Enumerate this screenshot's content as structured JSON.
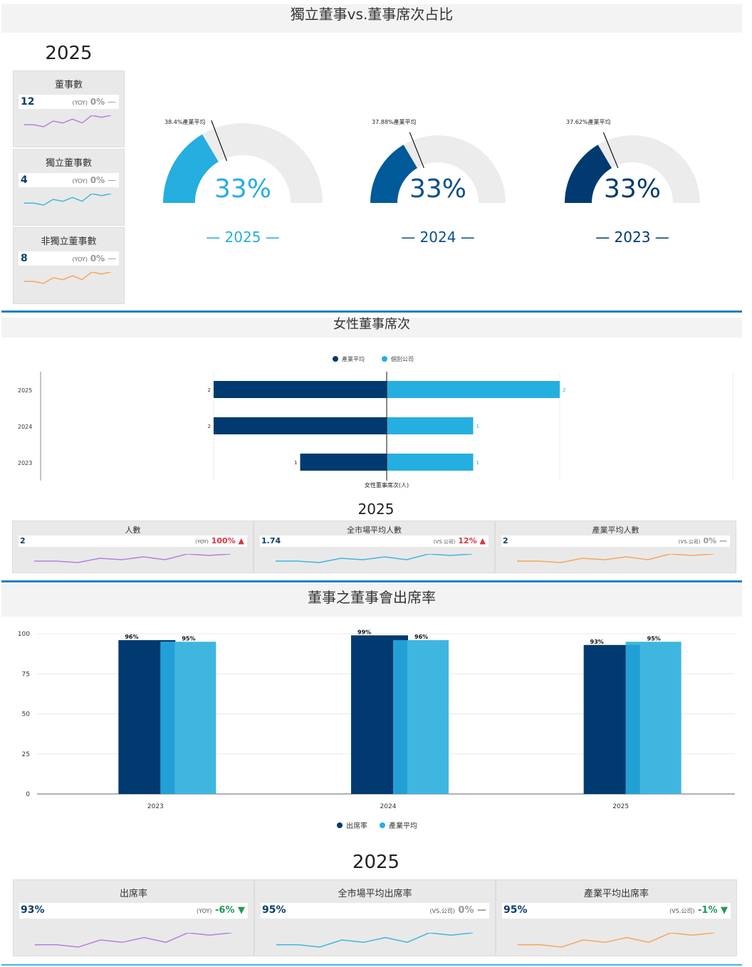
{
  "colors": {
    "dark": "#003a70",
    "mid": "#005a99",
    "light": "#25aee0",
    "purple": "#b57ee0",
    "cyan": "#3fb6e0",
    "orange": "#f6a65a"
  },
  "section1": {
    "title": "獨立董事vs.董事席次占比",
    "year": "2025",
    "kpis": [
      {
        "label": "董事數",
        "value": "12",
        "yoy_tag": "(YOY)",
        "change": "0%",
        "trend": "—",
        "spark": [
          3,
          3,
          2,
          5,
          4,
          6,
          4,
          8,
          7,
          8
        ],
        "color": "#b57ee0"
      },
      {
        "label": "獨立董事數",
        "value": "4",
        "yoy_tag": "(YOY)",
        "change": "0%",
        "trend": "—",
        "spark": [
          3,
          3,
          2,
          5,
          4,
          6,
          4,
          8,
          7,
          8
        ],
        "color": "#3fb6e0"
      },
      {
        "label": "非獨立董事數",
        "value": "8",
        "yoy_tag": "(YOY)",
        "change": "0%",
        "trend": "—",
        "spark": [
          3,
          3,
          2,
          5,
          4,
          6,
          4,
          8,
          7,
          8
        ],
        "color": "#f6a65a"
      }
    ],
    "gauges": [
      {
        "year": "— 2025 —",
        "pct": "33%",
        "value": 0.33,
        "avg_label": "38.4%產業平均",
        "avg": 0.384,
        "color": "#25aee0",
        "text_color": "#25aee0"
      },
      {
        "year": "— 2024 —",
        "pct": "33%",
        "value": 0.33,
        "avg_label": "37.88%產業平均",
        "avg": 0.3788,
        "color": "#005a99",
        "text_color": "#0a4f8a"
      },
      {
        "year": "— 2023 —",
        "pct": "33%",
        "value": 0.33,
        "avg_label": "37.62%產業平均",
        "avg": 0.3762,
        "color": "#003a70",
        "text_color": "#003a70"
      }
    ]
  },
  "section2": {
    "title": "女性董事席次",
    "legend": [
      "產業平均",
      "個別公司"
    ],
    "xlabel": "女性董事席次(人)",
    "year": "2025",
    "cards": [
      {
        "title": "人數",
        "value": "2",
        "tag": "(YOY)",
        "change": "100%",
        "arrow": "▲",
        "cls": "red",
        "color": "#b57ee0"
      },
      {
        "title": "全市場平均人數",
        "value": "1.74",
        "tag": "(VS.公司)",
        "change": "12%",
        "arrow": "▲",
        "cls": "red",
        "color": "#3fb6e0"
      },
      {
        "title": "產業平均人數",
        "value": "2",
        "tag": "(VS.公司)",
        "change": "0%",
        "arrow": "—",
        "cls": "grey",
        "color": "#f6a65a"
      }
    ]
  },
  "section3": {
    "title": "董事之董事會出席率",
    "year": "2025",
    "legend": [
      "出席率",
      "產業平均"
    ],
    "cards": [
      {
        "title": "出席率",
        "value": "93%",
        "tag": "(YOY)",
        "change": "-6%",
        "arrow": "▼",
        "cls": "green",
        "color": "#b57ee0"
      },
      {
        "title": "全市場平均出席率",
        "value": "95%",
        "tag": "(VS.公司)",
        "change": "0%",
        "arrow": "—",
        "cls": "grey",
        "color": "#3fb6e0"
      },
      {
        "title": "產業平均出席率",
        "value": "95%",
        "tag": "(VS.公司)",
        "change": "-1%",
        "arrow": "▼",
        "cls": "green",
        "color": "#f6a65a"
      }
    ]
  },
  "chart_data": [
    {
      "type": "bar",
      "orientation": "horizontal-diverging",
      "categories": [
        "2025",
        "2024",
        "2023"
      ],
      "series": [
        {
          "name": "產業平均",
          "values": [
            2,
            2,
            1
          ]
        },
        {
          "name": "個別公司",
          "values": [
            2,
            1,
            1
          ]
        }
      ],
      "xlabel": "女性董事席次(人)"
    },
    {
      "type": "bar",
      "categories": [
        "2023",
        "2024",
        "2025"
      ],
      "series": [
        {
          "name": "出席率",
          "values": [
            96,
            99,
            93
          ],
          "labels": [
            "96%",
            "99%",
            "93%"
          ]
        },
        {
          "name": "產業平均",
          "values": [
            95,
            96,
            95
          ],
          "labels": [
            "95%",
            "96%",
            "95%"
          ]
        }
      ],
      "yticks": [
        "100",
        "75",
        "50",
        "25",
        "0"
      ],
      "ylim": [
        0,
        100
      ],
      "grid": true,
      "legend": "bottom"
    }
  ]
}
